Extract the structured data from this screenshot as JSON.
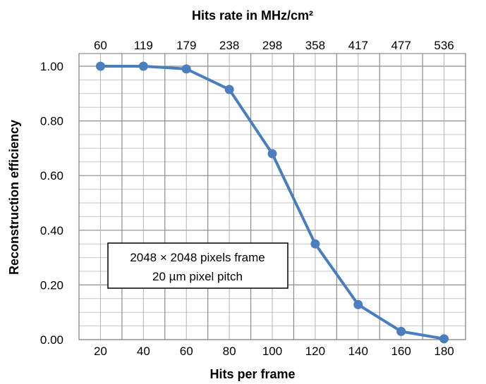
{
  "chart_data": {
    "type": "line",
    "title": "",
    "xlabel": "Hits per frame",
    "ylabel": "Reconstruction efficiency",
    "x2label": "Hits rate in MHz/cm²",
    "x": [
      20,
      40,
      60,
      80,
      100,
      120,
      140,
      160,
      180
    ],
    "x_tick_labels": [
      "20",
      "40",
      "60",
      "80",
      "100",
      "120",
      "140",
      "160",
      "180"
    ],
    "x2_tick_labels": [
      "60",
      "119",
      "179",
      "238",
      "298",
      "358",
      "417",
      "477",
      "536"
    ],
    "y": [
      1.0,
      1.0,
      0.99,
      0.915,
      0.68,
      0.35,
      0.128,
      0.03,
      0.003
    ],
    "y_tick_labels": [
      "0.00",
      "0.20",
      "0.40",
      "0.60",
      "0.80",
      "1.00"
    ],
    "xlim": [
      10,
      190
    ],
    "ylim": [
      0,
      1.0
    ],
    "grid": true,
    "series": [
      {
        "color": "#4a7ebf",
        "values": [
          1.0,
          1.0,
          0.99,
          0.915,
          0.68,
          0.35,
          0.128,
          0.03,
          0.003
        ]
      }
    ],
    "annotation": {
      "lines": [
        "2048 × 2048 pixels frame",
        "20 µm pixel pitch"
      ]
    }
  }
}
